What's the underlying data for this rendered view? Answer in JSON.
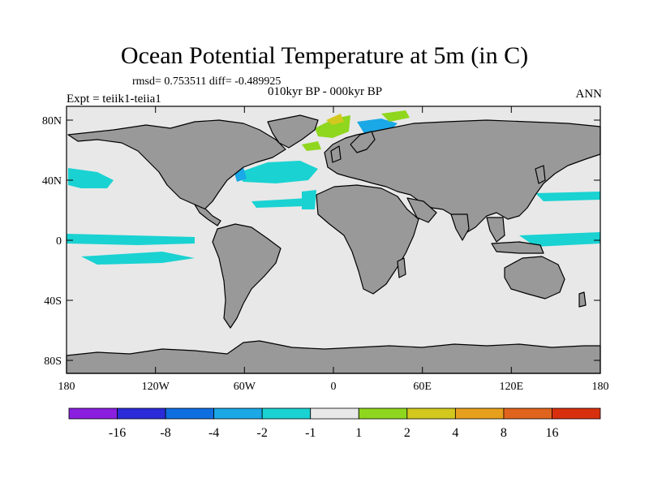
{
  "title": "Ocean Potential Temperature at 5m (in C)",
  "stats": "rmsd= 0.753511 diff= -0.489925",
  "period": "010kyr BP - 000kyr BP",
  "expt": "Expt = teiik1-teiia1",
  "season": "ANN",
  "lat_labels": [
    "80N",
    "40N",
    "0",
    "40S",
    "80S"
  ],
  "lon_labels": [
    "180",
    "120W",
    "60W",
    "0",
    "60E",
    "120E",
    "180"
  ],
  "colorbar": {
    "labels": [
      "-16",
      "-8",
      "-4",
      "-2",
      "-1",
      "1",
      "2",
      "4",
      "8",
      "16"
    ],
    "colors": [
      "#8a1fe0",
      "#2a2ad8",
      "#0f6ee0",
      "#1aa8e6",
      "#1ad2d2",
      "#e8e8e8",
      "#8fd61e",
      "#d2c81e",
      "#e6a01e",
      "#e0641e",
      "#d8300e"
    ]
  },
  "colors": {
    "ocean": "#e8e8e8",
    "land": "#999999",
    "coast": "#000000"
  }
}
